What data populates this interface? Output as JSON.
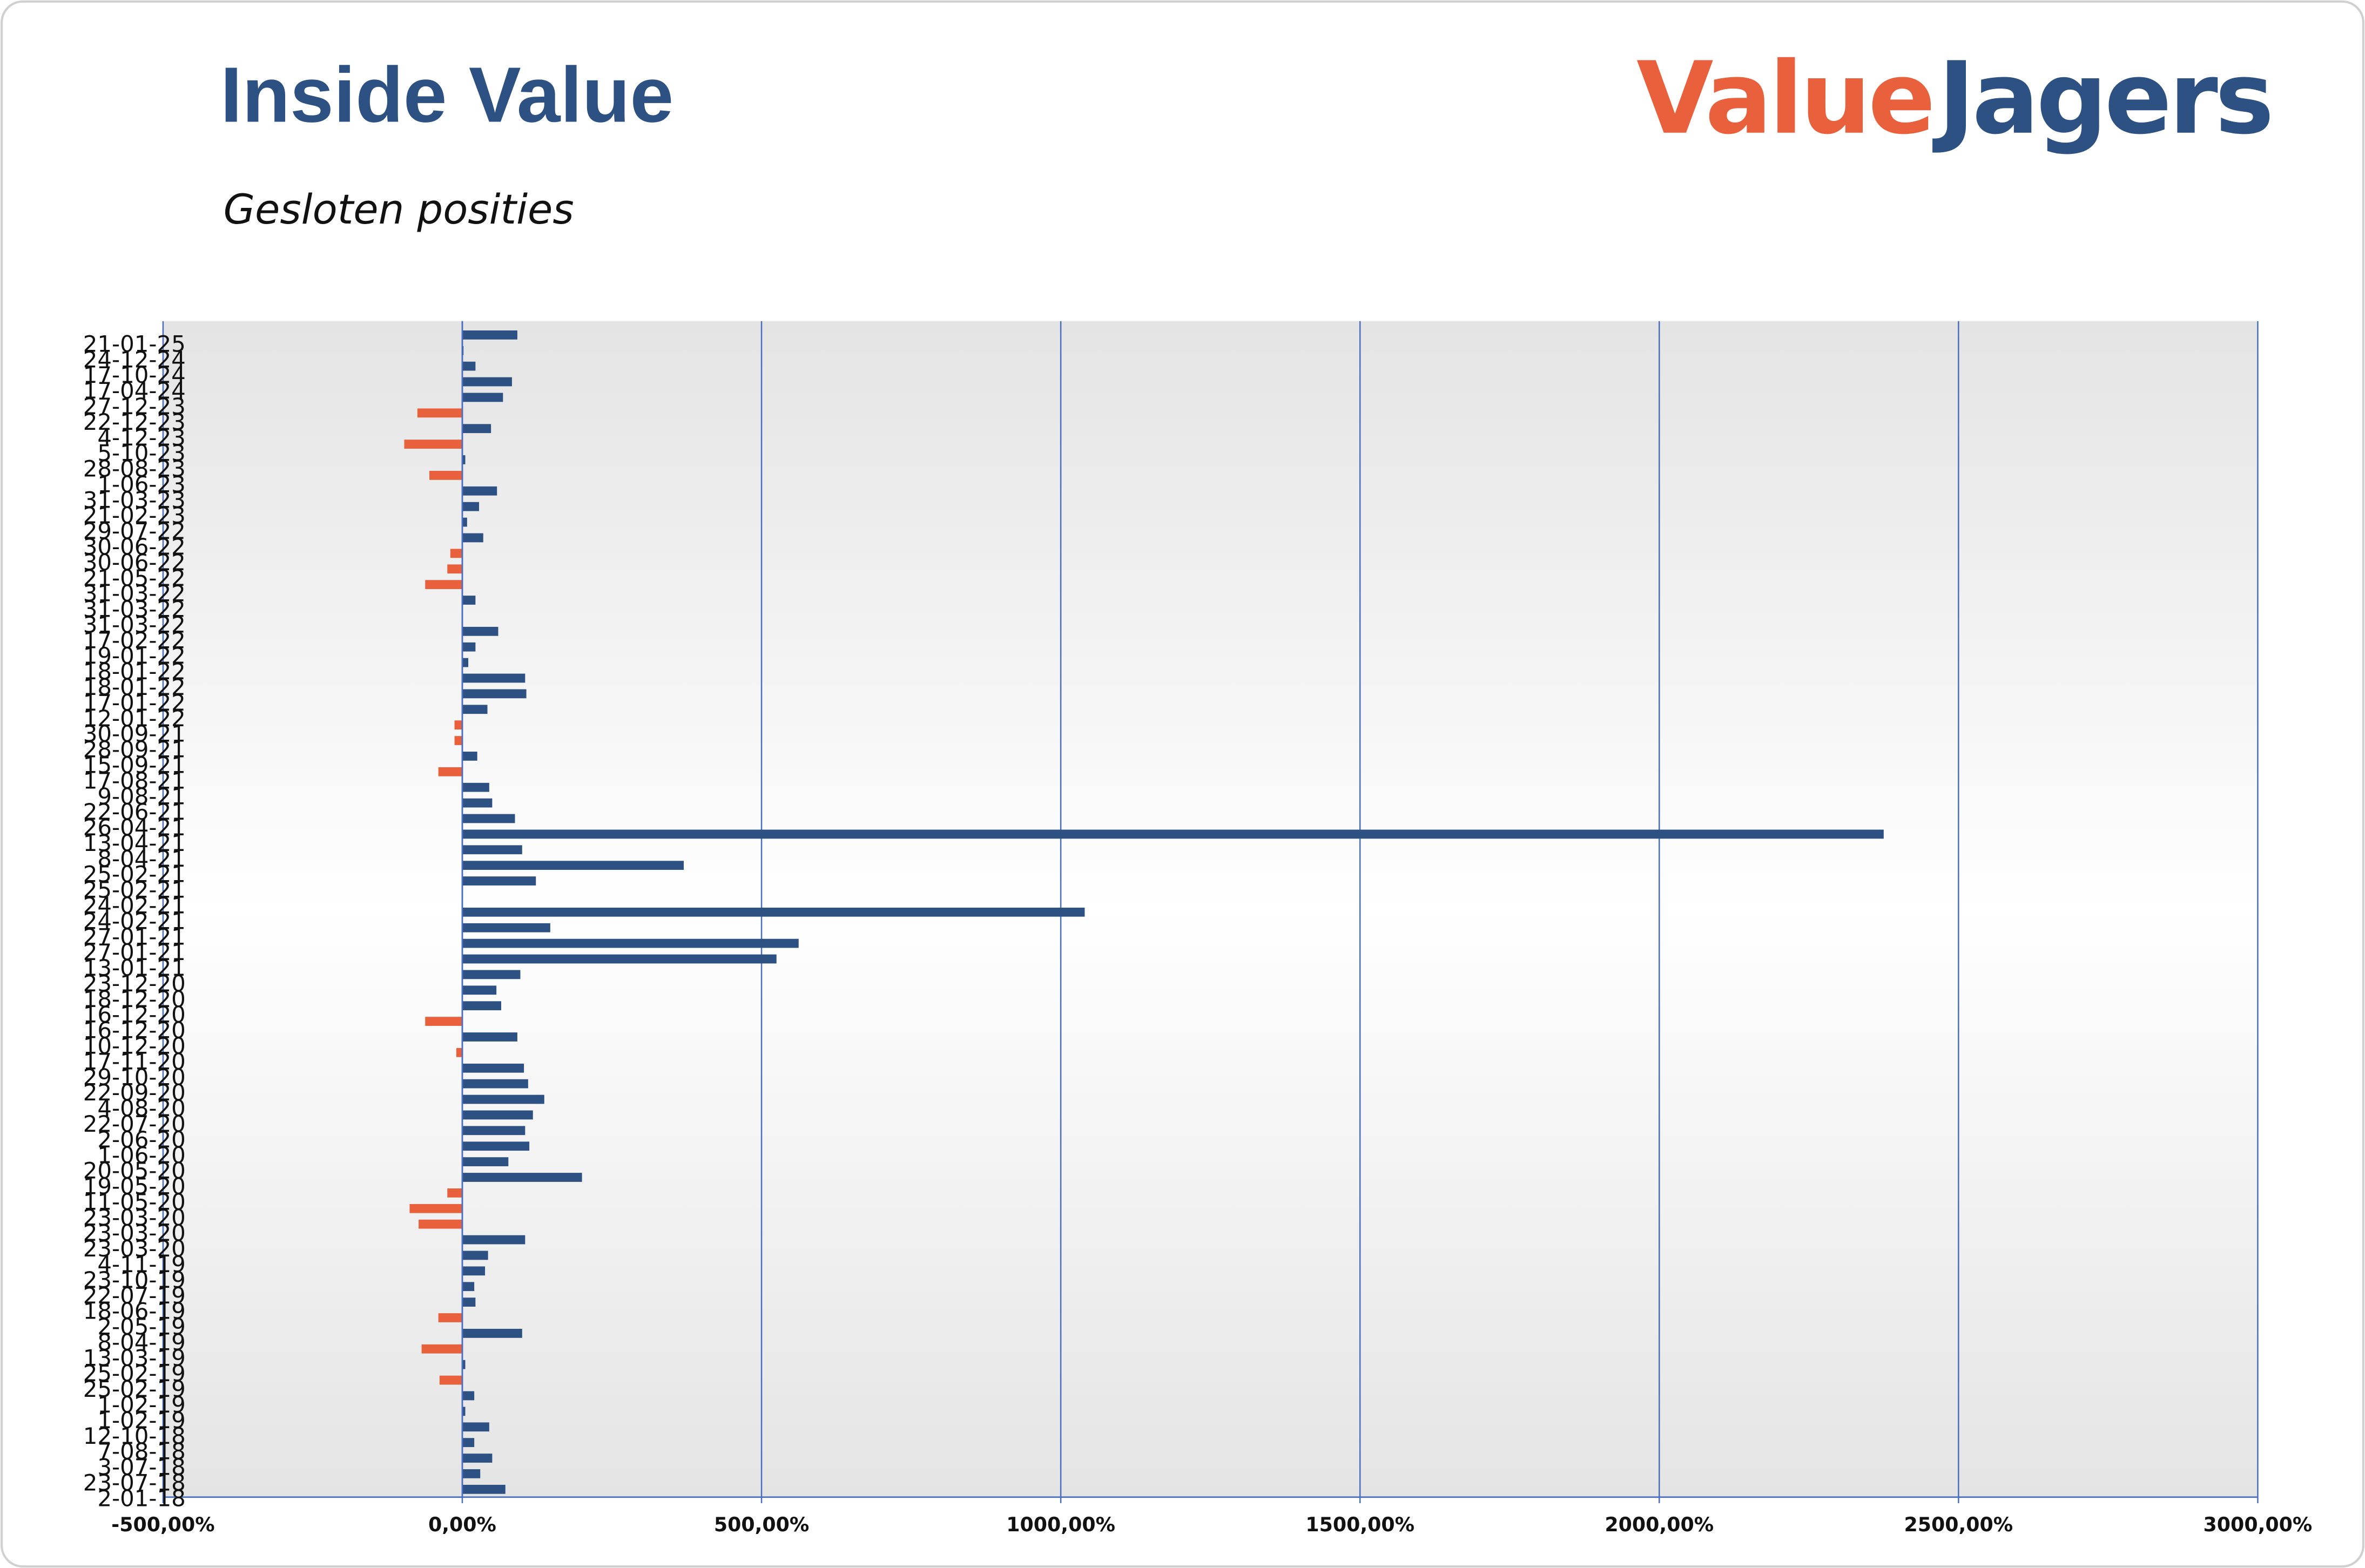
{
  "brand": {
    "part1": "Value",
    "part2": "Jagers"
  },
  "chart_data": {
    "type": "hbar",
    "title": "Inside Value",
    "subtitle": "Gesloten posities",
    "categories": [
      "21-01-25",
      "24-12-24",
      "17-10-24",
      "17-04-24",
      "27-12-23",
      "22-12-23",
      "4-12-23",
      "5-10-23",
      "28-08-23",
      "1-06-23",
      "31-03-23",
      "21-02-23",
      "29-07-22",
      "30-06-22",
      "30-06-22",
      "21-05-22",
      "31-03-22",
      "31-03-22",
      "31-03-22",
      "17-02-22",
      "19-01-22",
      "18-01-22",
      "18-01-22",
      "17-01-22",
      "12-01-22",
      "30-09-21",
      "28-09-21",
      "15-09-21",
      "17-08-21",
      "9-08-21",
      "22-06-21",
      "26-04-21",
      "13-04-21",
      "8-04-21",
      "25-02-21",
      "25-02-21",
      "24-02-21",
      "24-02-21",
      "27-01-21",
      "27-01-21",
      "13-01-21",
      "23-12-20",
      "18-12-20",
      "16-12-20",
      "16-12-20",
      "10-12-20",
      "17-11-20",
      "29-10-20",
      "22-09-20",
      "4-08-20",
      "22-07-20",
      "2-06-20",
      "1-06-20",
      "20-05-20",
      "19-05-20",
      "11-05-20",
      "23-03-20",
      "23-03-20",
      "23-03-20",
      "4-11-19",
      "23-10-19",
      "22-07-19",
      "18-06-19",
      "2-05-19",
      "8-04-19",
      "13-03-19",
      "25-02-19",
      "25-02-19",
      "1-02-19",
      "1-02-19",
      "12-10-18",
      "7-08-18",
      "3-07-18",
      "23-07-18",
      "2-01-18"
    ],
    "values": [
      92,
      2,
      22,
      83,
      68,
      -75,
      48,
      -97,
      5,
      -55,
      58,
      28,
      8,
      35,
      -20,
      -25,
      -62,
      22,
      null,
      60,
      22,
      10,
      105,
      107,
      42,
      -13,
      -13,
      25,
      -40,
      45,
      50,
      88,
      2375,
      100,
      370,
      123,
      null,
      1040,
      147,
      562,
      525,
      97,
      57,
      65,
      -62,
      92,
      -10,
      103,
      110,
      137,
      118,
      105,
      112,
      77,
      200,
      -25,
      -88,
      -73,
      105,
      43,
      38,
      20,
      22,
      -40,
      100,
      -68,
      5,
      -38,
      20,
      5,
      45,
      20,
      50,
      30,
      72
    ],
    "positive_color": "#2d5183",
    "negative_color": "#e8603c",
    "xlim": [
      -500,
      3000
    ],
    "xticks": [
      {
        "value": -500,
        "label": "-500,00%"
      },
      {
        "value": 0,
        "label": "0,00%"
      },
      {
        "value": 500,
        "label": "500,00%"
      },
      {
        "value": 1000,
        "label": "1000,00%"
      },
      {
        "value": 1500,
        "label": "1500,00%"
      },
      {
        "value": 2000,
        "label": "2000,00%"
      },
      {
        "value": 2500,
        "label": "2500,00%"
      },
      {
        "value": 3000,
        "label": "3000,00%"
      }
    ],
    "grid": true
  }
}
